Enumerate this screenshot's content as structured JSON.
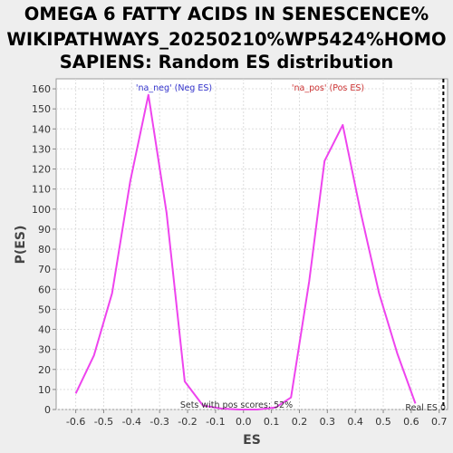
{
  "chart_data": {
    "type": "line",
    "title_lines": [
      "OMEGA 6 FATTY ACIDS IN SENESCENCE%",
      "WIKIPATHWAYS_20250210%WP5424%HOMO",
      "SAPIENS: Random ES distribution"
    ],
    "xlabel": "ES",
    "ylabel": "P(ES)",
    "xlim": [
      -0.67,
      0.73
    ],
    "ylim": [
      0,
      165
    ],
    "x_ticks": [
      "-0.6",
      "-0.5",
      "-0.4",
      "-0.3",
      "-0.2",
      "-0.1",
      "0.0",
      "0.1",
      "0.2",
      "0.3",
      "0.4",
      "0.5",
      "0.6",
      "0.7"
    ],
    "y_ticks": [
      "0",
      "10",
      "20",
      "30",
      "40",
      "50",
      "60",
      "70",
      "80",
      "90",
      "100",
      "110",
      "120",
      "130",
      "140",
      "150",
      "160"
    ],
    "grid": true,
    "series_color": "#ee44ee",
    "series": [
      {
        "points": [
          [
            -0.6,
            8
          ],
          [
            -0.535,
            27
          ],
          [
            -0.47,
            58
          ],
          [
            -0.405,
            114
          ],
          [
            -0.34,
            157
          ],
          [
            -0.275,
            98
          ],
          [
            -0.21,
            14
          ],
          [
            -0.145,
            2
          ],
          [
            -0.08,
            0.5
          ],
          [
            -0.015,
            0
          ],
          [
            0.05,
            0
          ],
          [
            0.115,
            1
          ],
          [
            0.17,
            6
          ],
          [
            0.235,
            64
          ],
          [
            0.29,
            124
          ],
          [
            0.355,
            142
          ],
          [
            0.42,
            98
          ],
          [
            0.485,
            58
          ],
          [
            0.55,
            28
          ],
          [
            0.615,
            3
          ]
        ]
      }
    ],
    "annotations": {
      "neg_label": "'na_neg' (Neg ES)",
      "neg_color": "#3333cc",
      "pos_label": "'na_pos' (Pos ES)",
      "pos_color": "#cc3333",
      "sets_text": "Sets with pos scores: 52%",
      "real_es_text": "Real ES 0",
      "real_es_value": 0.715
    }
  }
}
